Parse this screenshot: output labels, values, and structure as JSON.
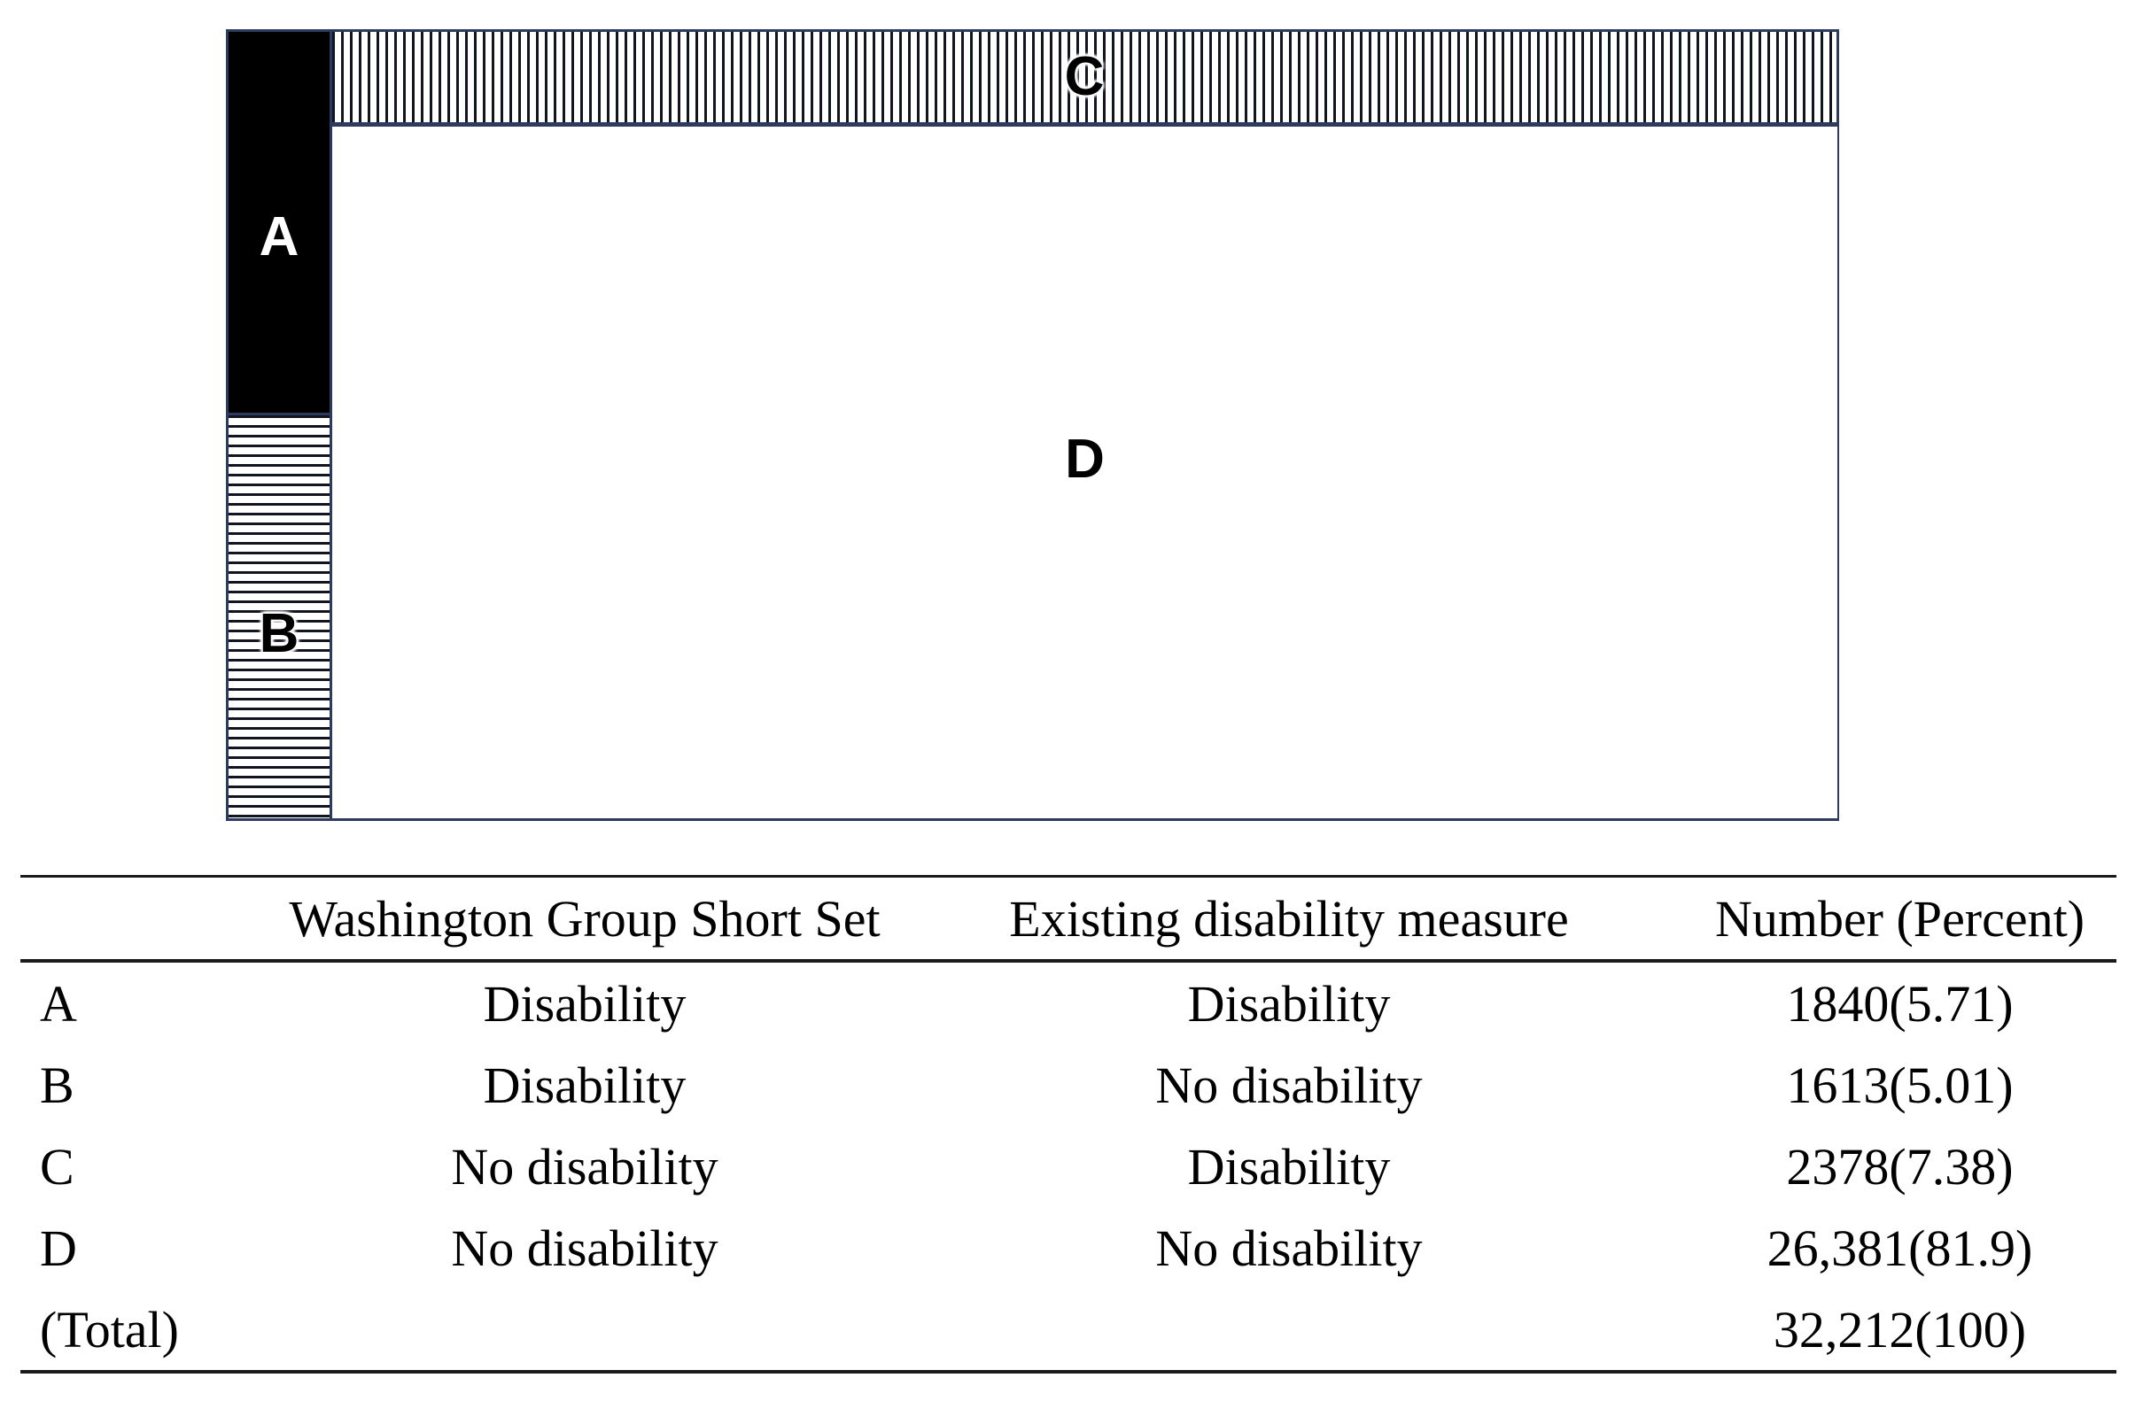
{
  "figure": {
    "description": "Area-proportional agreement diagram for two disability measures",
    "labels": {
      "a": "A",
      "b": "B",
      "c": "C",
      "d": "D"
    }
  },
  "table": {
    "headers": [
      "",
      "Washington Group Short Set",
      "Existing disability measure",
      "Number (Percent)"
    ],
    "rows": [
      [
        "A",
        "Disability",
        "Disability",
        "1840(5.71)"
      ],
      [
        "B",
        "Disability",
        "No disability",
        "1613(5.01)"
      ],
      [
        "C",
        "No disability",
        "Disability",
        "2378(7.38)"
      ],
      [
        "D",
        "No disability",
        "No disability",
        "26,381(81.9)"
      ],
      [
        "(Total)",
        "",
        "",
        "32,212(100)"
      ]
    ]
  },
  "chart_data": {
    "type": "area",
    "title": "",
    "regions": [
      {
        "label": "A",
        "wgss": "Disability",
        "existing_measure": "Disability",
        "number": 1840,
        "percent": 5.71,
        "pattern": "solid-black"
      },
      {
        "label": "B",
        "wgss": "Disability",
        "existing_measure": "No disability",
        "number": 1613,
        "percent": 5.01,
        "pattern": "horizontal-stripes"
      },
      {
        "label": "C",
        "wgss": "No disability",
        "existing_measure": "Disability",
        "number": 2378,
        "percent": 7.38,
        "pattern": "vertical-stripes"
      },
      {
        "label": "D",
        "wgss": "No disability",
        "existing_measure": "No disability",
        "number": 26381,
        "percent": 81.9,
        "pattern": "white"
      }
    ],
    "total": {
      "number": 32212,
      "percent": 100
    }
  },
  "colors": {
    "diagram_border": "#2d3c5e",
    "region_a_fill": "#000000",
    "stripe_line": "#10151f",
    "table_rule": "#1b1b1b",
    "text": "#000000",
    "label_on_black": "#ffffff"
  }
}
